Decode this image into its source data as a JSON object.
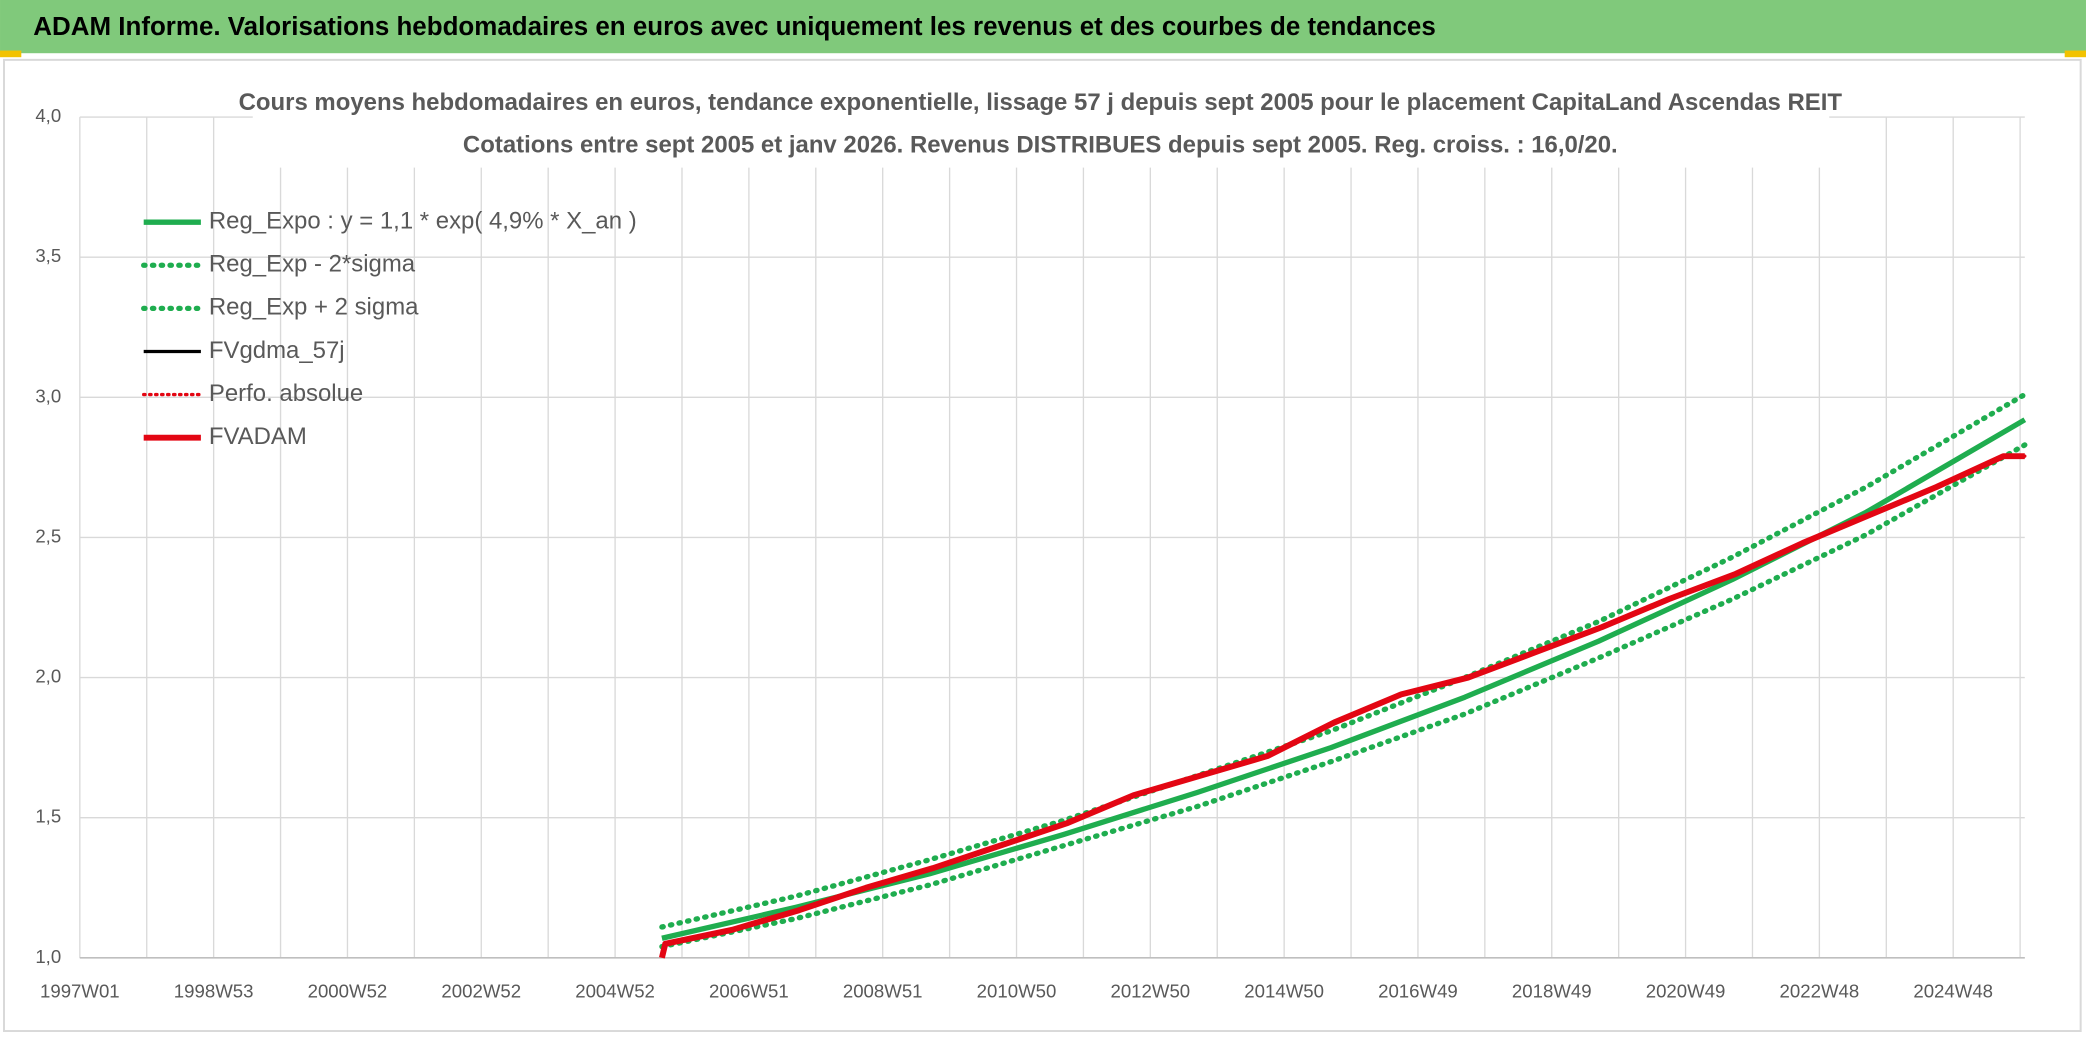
{
  "header": {
    "title": "ADAM Informe. Valorisations hebdomadaires en euros avec uniquement les revenus et des courbes de tendances"
  },
  "chart_data": {
    "type": "line",
    "title": [
      "Cours moyens hebdomadaires en euros, tendance exponentielle, lissage 57 j depuis sept 2005 pour le placement CapitaLand Ascendas REIT",
      "Cotations entre sept 2005 et janv 2026. Revenus DISTRIBUES depuis sept 2005. Reg. croiss. : 16,0/20."
    ],
    "xlim": [
      1997,
      2026.07
    ],
    "xticks": [
      {
        "value": 1997,
        "label": "1997W01"
      },
      {
        "value": 1999,
        "label": "1998W53"
      },
      {
        "value": 2001,
        "label": "2000W52"
      },
      {
        "value": 2003,
        "label": "2002W52"
      },
      {
        "value": 2005,
        "label": "2004W52"
      },
      {
        "value": 2007,
        "label": "2006W51"
      },
      {
        "value": 2009,
        "label": "2008W51"
      },
      {
        "value": 2011,
        "label": "2010W50"
      },
      {
        "value": 2013,
        "label": "2012W50"
      },
      {
        "value": 2015,
        "label": "2014W50"
      },
      {
        "value": 2017,
        "label": "2016W49"
      },
      {
        "value": 2019,
        "label": "2018W49"
      },
      {
        "value": 2021,
        "label": "2020W49"
      },
      {
        "value": 2023,
        "label": "2022W48"
      },
      {
        "value": 2025,
        "label": "2024W48"
      }
    ],
    "x_minor_ticks": [
      1998,
      2000,
      2002,
      2004,
      2006,
      2008,
      2010,
      2012,
      2014,
      2016,
      2018,
      2020,
      2022,
      2024,
      2026
    ],
    "ylim": [
      1.0,
      4.0
    ],
    "yticks": [
      {
        "value": 1.0,
        "label": "1,0"
      },
      {
        "value": 1.5,
        "label": "1,5"
      },
      {
        "value": 2.0,
        "label": "2,0"
      },
      {
        "value": 2.5,
        "label": "2,5"
      },
      {
        "value": 3.0,
        "label": "3,0"
      },
      {
        "value": 3.5,
        "label": "3,5"
      },
      {
        "value": 4.0,
        "label": "4,0"
      }
    ],
    "grid": true,
    "series": [
      {
        "name": "Reg_Expo : y = 1,1 * exp( 4,9% *  X_an )",
        "color": "#1fad4f",
        "style": "solid",
        "width": 4,
        "x": [
          2005.7,
          2007.7,
          2009.7,
          2011.7,
          2013.7,
          2015.7,
          2017.7,
          2019.7,
          2021.7,
          2023.7,
          2026.07
        ],
        "values": [
          1.07,
          1.18,
          1.3,
          1.44,
          1.59,
          1.75,
          1.93,
          2.13,
          2.35,
          2.59,
          2.92
        ]
      },
      {
        "name": "Reg_Exp - 2*sigma",
        "color": "#1fad4f",
        "style": "dotted",
        "width": 4,
        "x": [
          2005.7,
          2007.7,
          2009.7,
          2011.7,
          2013.7,
          2015.7,
          2017.7,
          2019.7,
          2021.7,
          2023.7,
          2026.07
        ],
        "values": [
          1.04,
          1.14,
          1.26,
          1.4,
          1.54,
          1.7,
          1.87,
          2.07,
          2.28,
          2.51,
          2.83
        ]
      },
      {
        "name": "Reg_Exp + 2 sigma",
        "color": "#1fad4f",
        "style": "dotted",
        "width": 4,
        "x": [
          2005.7,
          2007.7,
          2009.7,
          2011.7,
          2013.7,
          2015.7,
          2017.7,
          2019.7,
          2021.7,
          2023.7,
          2026.07
        ],
        "values": [
          1.11,
          1.22,
          1.35,
          1.49,
          1.65,
          1.81,
          2.0,
          2.2,
          2.43,
          2.68,
          3.01
        ]
      },
      {
        "name": "FVgdma_57j",
        "color": "#000000",
        "style": "solid",
        "width": 2.5,
        "x": [
          2005.75,
          2006.75,
          2007.75,
          2008.75,
          2009.75,
          2010.75,
          2011.75,
          2012.75,
          2013.75,
          2014.75,
          2015.75,
          2016.75,
          2017.75,
          2018.75,
          2019.75,
          2020.75,
          2021.75,
          2022.75,
          2023.75,
          2024.75,
          2025.75,
          2026.07
        ],
        "values": [
          1.05,
          1.1,
          1.17,
          1.25,
          1.32,
          1.4,
          1.48,
          1.58,
          1.65,
          1.72,
          1.84,
          1.94,
          2.0,
          2.09,
          2.18,
          2.28,
          2.37,
          2.48,
          2.58,
          2.68,
          2.79,
          2.79
        ]
      },
      {
        "name": "Perfo. absolue",
        "color": "#e30613",
        "style": "dotted",
        "width": 2.5,
        "x": [
          2005.75,
          2006.75,
          2007.75,
          2008.75,
          2009.75,
          2010.75,
          2011.75,
          2012.75,
          2013.75,
          2014.75,
          2015.75,
          2016.75,
          2017.75,
          2018.75,
          2019.75,
          2020.75,
          2021.75,
          2022.75,
          2023.75,
          2024.75,
          2025.75,
          2026.07
        ],
        "values": [
          1.05,
          1.1,
          1.17,
          1.25,
          1.32,
          1.4,
          1.48,
          1.58,
          1.65,
          1.72,
          1.84,
          1.94,
          2.0,
          2.09,
          2.18,
          2.28,
          2.37,
          2.48,
          2.58,
          2.68,
          2.79,
          2.79
        ]
      },
      {
        "name": "FVADAM",
        "color": "#e30613",
        "style": "solid",
        "width": 4.5,
        "x": [
          2005.7,
          2005.75,
          2006.75,
          2007.75,
          2008.75,
          2009.75,
          2010.75,
          2011.75,
          2012.75,
          2013.75,
          2014.75,
          2015.75,
          2016.75,
          2017.75,
          2018.75,
          2019.75,
          2020.75,
          2021.75,
          2022.75,
          2023.75,
          2024.75,
          2025.75,
          2026.07
        ],
        "values": [
          1.0,
          1.05,
          1.1,
          1.17,
          1.25,
          1.32,
          1.4,
          1.48,
          1.58,
          1.65,
          1.72,
          1.84,
          1.94,
          2.0,
          2.09,
          2.18,
          2.28,
          2.37,
          2.48,
          2.58,
          2.68,
          2.79,
          2.79
        ]
      }
    ]
  }
}
